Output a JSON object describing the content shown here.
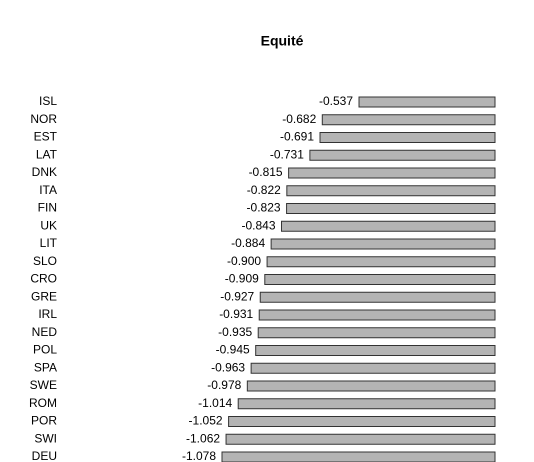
{
  "chart_data": {
    "type": "bar",
    "orientation": "horizontal",
    "title": "Equité",
    "categories": [
      "ISL",
      "NOR",
      "EST",
      "LAT",
      "DNK",
      "ITA",
      "FIN",
      "UK",
      "LIT",
      "SLO",
      "CRO",
      "GRE",
      "IRL",
      "NED",
      "POL",
      "SPA",
      "SWE",
      "ROM",
      "POR",
      "SWI",
      "DEU"
    ],
    "values": [
      -0.537,
      -0.682,
      -0.691,
      -0.731,
      -0.815,
      -0.822,
      -0.823,
      -0.843,
      -0.884,
      -0.9,
      -0.909,
      -0.927,
      -0.931,
      -0.935,
      -0.945,
      -0.963,
      -0.978,
      -1.014,
      -1.052,
      -1.062,
      -1.078
    ],
    "value_labels": [
      "-0.537",
      "-0.682",
      "-0.691",
      "-0.731",
      "-0.815",
      "-0.822",
      "-0.823",
      "-0.843",
      "-0.884",
      "-0.900",
      "-0.909",
      "-0.927",
      "-0.931",
      "-0.935",
      "-0.945",
      "-0.963",
      "-0.978",
      "-1.014",
      "-1.052",
      "-1.062",
      "-1.078"
    ],
    "color": "#b4b4b4"
  }
}
